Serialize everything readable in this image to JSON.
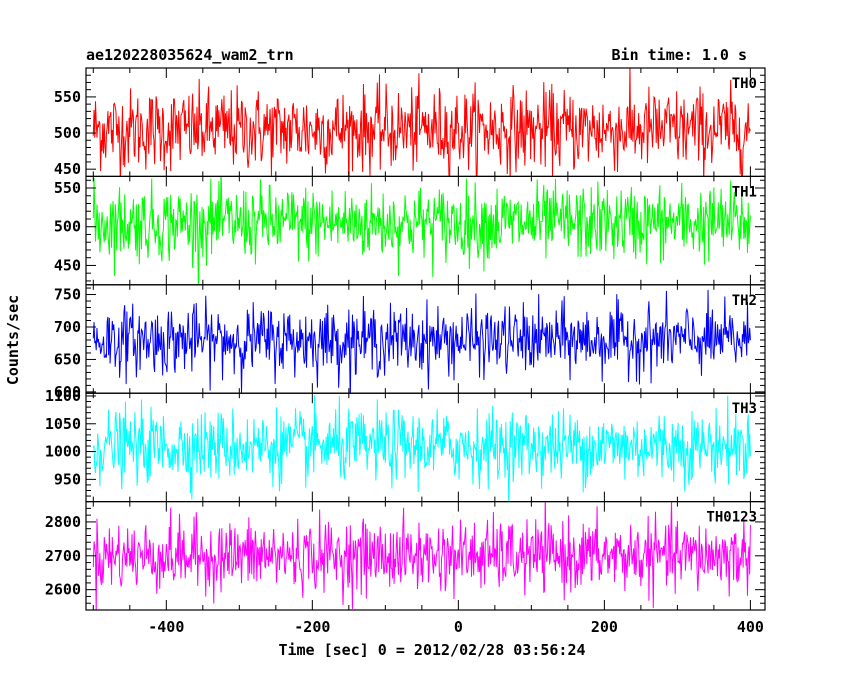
{
  "chart_data": {
    "type": "line",
    "title": "ae120228035624_wam2_trn",
    "subtitle": "Bin time: 1.0 s",
    "xlabel": "Time [sec] 0 = 2012/02/28 03:56:24",
    "ylabel": "Counts/sec",
    "xlim": [
      -510,
      420
    ],
    "x_ticks": [
      -400,
      -200,
      0,
      200,
      400
    ],
    "x_sample_range": [
      -500,
      400
    ],
    "bin_time_s": 1.0,
    "panels": [
      {
        "name": "TH0",
        "color": "#ff0000",
        "ylim": [
          440,
          590
        ],
        "y_ticks": [
          450,
          500,
          550
        ],
        "mean": 505,
        "spread": 28
      },
      {
        "name": "TH1",
        "color": "#00ff00",
        "ylim": [
          425,
          565
        ],
        "y_ticks": [
          450,
          500,
          550
        ],
        "mean": 505,
        "spread": 24
      },
      {
        "name": "TH2",
        "color": "#0000ff",
        "ylim": [
          598,
          765
        ],
        "y_ticks": [
          600,
          650,
          700,
          750
        ],
        "mean": 680,
        "spread": 26
      },
      {
        "name": "TH3",
        "color": "#00ffff",
        "ylim": [
          910,
          1105
        ],
        "y_ticks": [
          950,
          1000,
          1050,
          1100
        ],
        "mean": 1010,
        "spread": 32
      },
      {
        "name": "TH0123",
        "color": "#ff00ff",
        "ylim": [
          2540,
          2860
        ],
        "y_ticks": [
          2600,
          2700,
          2800
        ],
        "mean": 2700,
        "spread": 52
      }
    ]
  }
}
